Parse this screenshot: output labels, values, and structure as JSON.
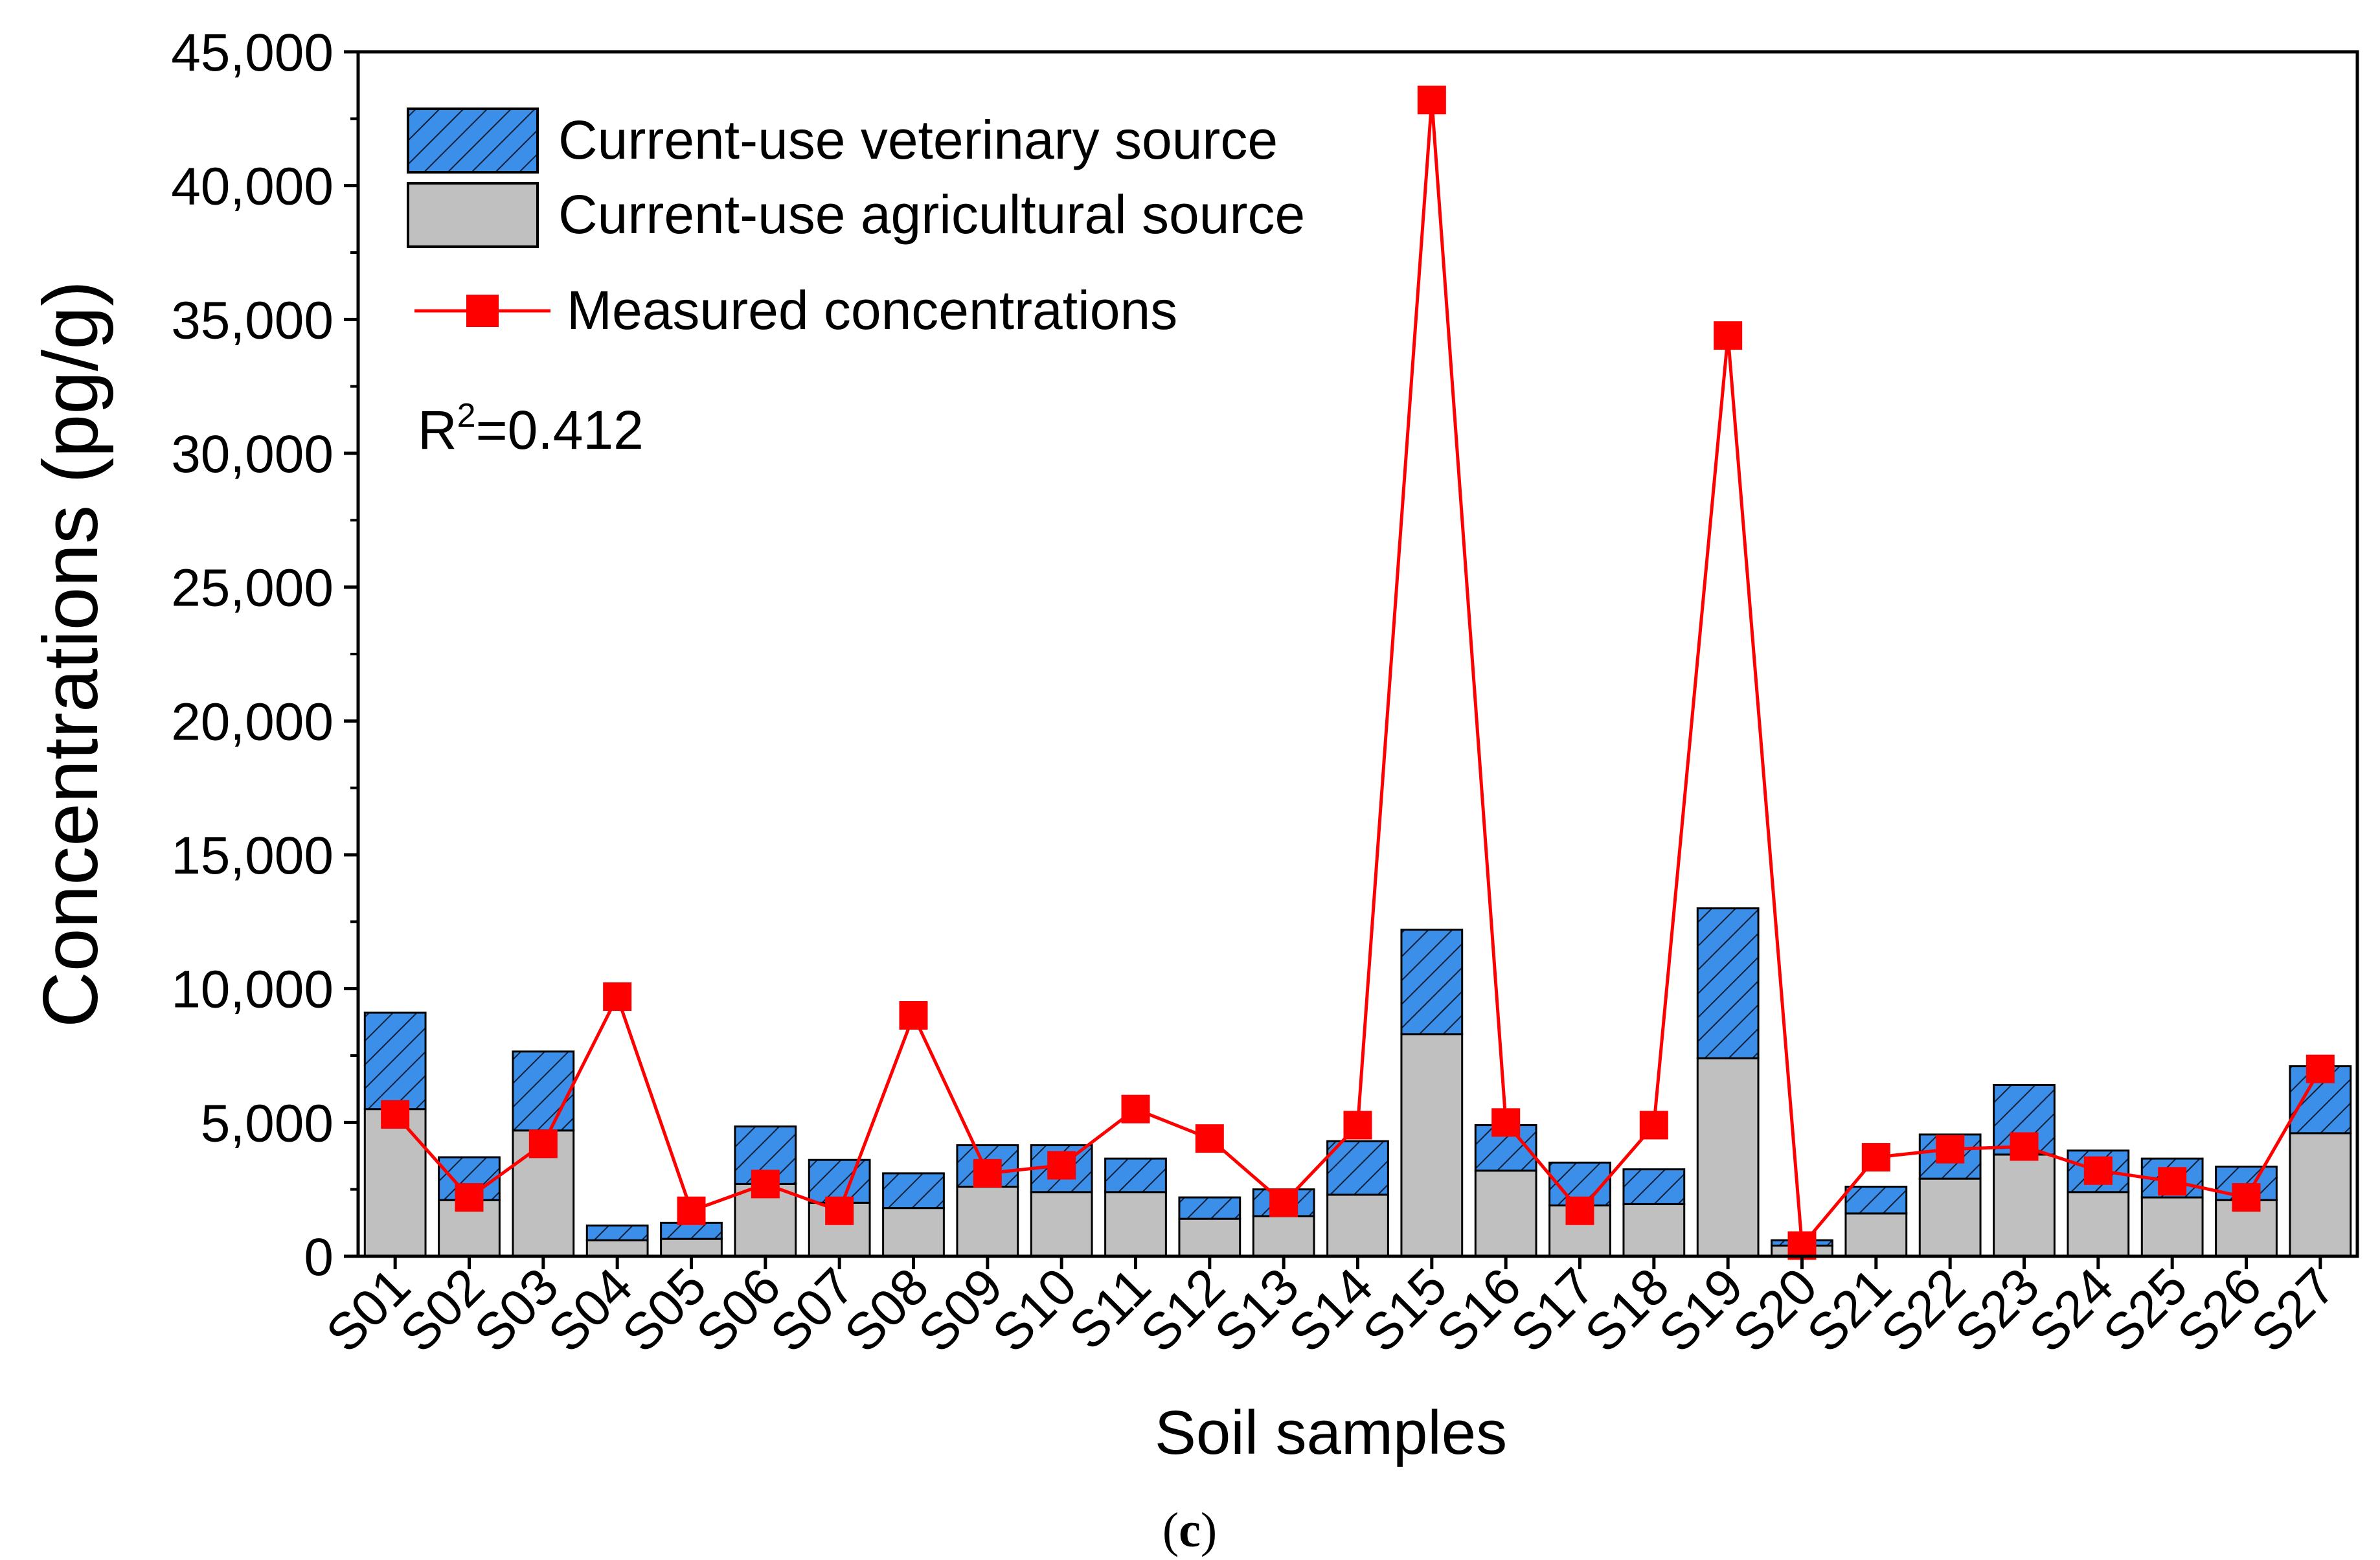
{
  "chart_data": {
    "type": "bar",
    "stacked": true,
    "xlabel": "Soil samples",
    "ylabel": "Concentrations (pg/g)",
    "ylim": [
      0,
      45000
    ],
    "yticks": [
      0,
      5000,
      10000,
      15000,
      20000,
      25000,
      30000,
      35000,
      40000,
      45000
    ],
    "ytick_labels": [
      "0",
      "5,000",
      "10,000",
      "15,000",
      "20,000",
      "25,000",
      "30,000",
      "35,000",
      "40,000",
      "45,000"
    ],
    "categories": [
      "S01",
      "S02",
      "S03",
      "S04",
      "S05",
      "S06",
      "S07",
      "S08",
      "S09",
      "S10",
      "S11",
      "S12",
      "S13",
      "S14",
      "S15",
      "S16",
      "S17",
      "S18",
      "S19",
      "S20",
      "S21",
      "S22",
      "S23",
      "S24",
      "S25",
      "S26",
      "S27"
    ],
    "series": [
      {
        "name": "Current-use agricultural source",
        "kind": "bar",
        "color": "#c0c0c0",
        "values": [
          5500,
          2100,
          4700,
          600,
          650,
          2700,
          2000,
          1800,
          2600,
          2400,
          2400,
          1400,
          1500,
          2300,
          8300,
          3200,
          1900,
          1950,
          7400,
          400,
          1600,
          2900,
          3800,
          2400,
          2200,
          2100,
          4600
        ]
      },
      {
        "name": "Current-use veterinary source",
        "kind": "bar",
        "color": "#3b8fe8",
        "pattern": "hatch",
        "values": [
          3600,
          1600,
          2950,
          550,
          600,
          2150,
          1600,
          1300,
          1550,
          1750,
          1250,
          800,
          1000,
          2000,
          3900,
          1700,
          1600,
          1300,
          5600,
          200,
          1000,
          1650,
          2600,
          1550,
          1450,
          1250,
          2500
        ]
      },
      {
        "name": "Measured concentrations",
        "kind": "line",
        "color": "#ff0000",
        "marker": "square",
        "values": [
          5300,
          2200,
          4200,
          9700,
          1700,
          2700,
          1700,
          9000,
          3100,
          3400,
          5500,
          4400,
          2000,
          4900,
          43200,
          5000,
          1700,
          4900,
          34400,
          400,
          3700,
          4000,
          4100,
          3200,
          2800,
          2200,
          7000
        ]
      }
    ],
    "legend": {
      "position": "top-left",
      "entries": [
        "Current-use veterinary source",
        "Current-use agricultural source",
        "Measured concentrations"
      ]
    },
    "annotation": {
      "text_main": "R",
      "text_sup": "2",
      "text_rest": "=0.412"
    },
    "caption": {
      "open": "(",
      "letter": "c",
      "close": ")"
    }
  }
}
